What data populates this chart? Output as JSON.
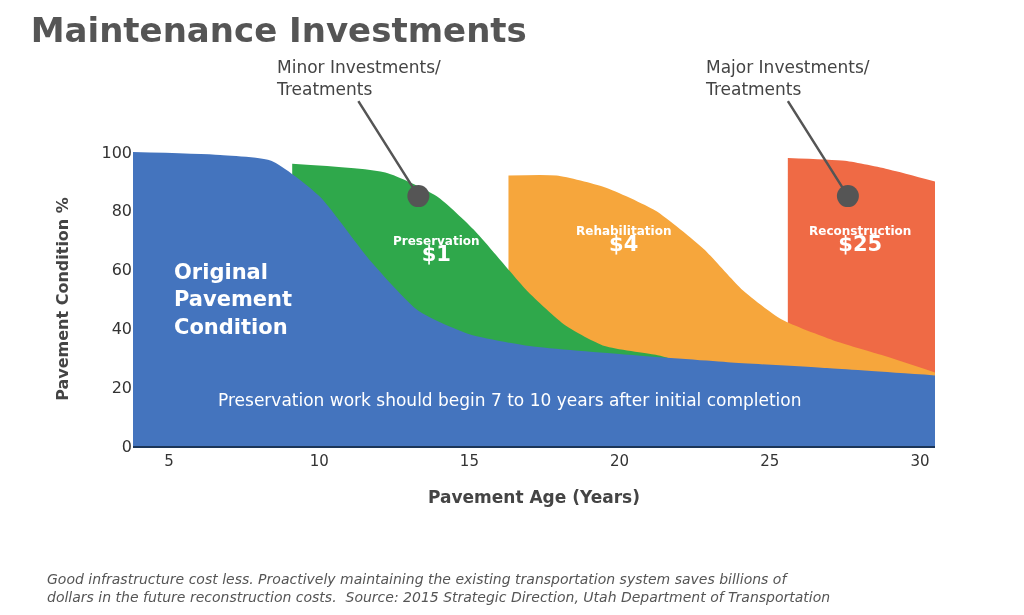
{
  "chart_data": {
    "type": "area",
    "title": "Maintenance Investments",
    "xlabel": "Pavement Age (Years)",
    "ylabel": "Pavement Condition %",
    "xlim": [
      3.8,
      30.5
    ],
    "xticks": [
      5,
      10,
      15,
      20,
      25,
      30
    ],
    "ylim": [
      0,
      100
    ],
    "yticks": [
      0,
      20,
      40,
      60,
      80,
      100
    ],
    "grid": false,
    "series": [
      {
        "color": "#ef6a45",
        "x": [
          25.6,
          27.5,
          29,
          30.5
        ],
        "values": [
          98,
          97,
          94,
          90
        ]
      },
      {
        "color": "#f6a63c",
        "x": [
          16.3,
          17.9,
          19.5,
          21.2,
          22.8,
          24.1,
          25.4,
          27.1,
          28.7,
          30.5
        ],
        "values": [
          92,
          92,
          88,
          80,
          67,
          53,
          43,
          36,
          31,
          25
        ]
      },
      {
        "color": "#2fa84b",
        "x": [
          9.1,
          12.2,
          13.9,
          15.2,
          16.9,
          18.2,
          19.5,
          21.2,
          21.6
        ],
        "values": [
          96,
          93,
          85,
          73,
          53,
          41,
          34,
          31,
          30
        ]
      },
      {
        "color": "#4474be",
        "x": [
          3.8,
          6.7,
          8.4,
          10.0,
          11.7,
          13.3,
          15.0,
          17.0,
          20.3,
          23.6,
          26.9,
          30.5
        ],
        "values": [
          100,
          99,
          97,
          85,
          63,
          46,
          38,
          34,
          31,
          28.5,
          26.5,
          24
        ]
      }
    ],
    "annotations": [
      {
        "text": "Minor Investments/\nTreatments",
        "x": 13.3,
        "y": 85
      },
      {
        "text": "Major Investments/\nTreatments",
        "x": 27.6,
        "y": 85
      },
      "Preservation\n$1",
      "Rehabilitation\n$4",
      "Reconstruction\n$25",
      "Original\nPavement\nCondition",
      "Preservation work should begin 7 to 10 years after initial completion",
      "Good infrastructure cost less. Proactively maintaining the existing transportation system saves billions of\ndollars in the future reconstruction costs.  Source: 2015 Strategic Direction, Utah Department of Transportation"
    ]
  }
}
